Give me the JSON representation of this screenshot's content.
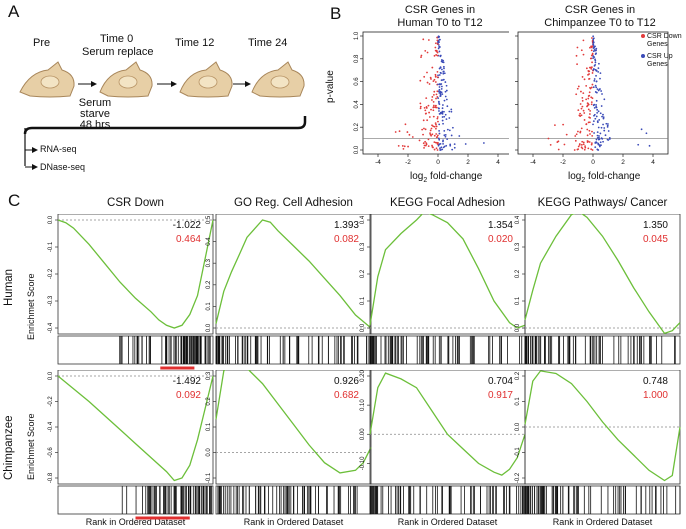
{
  "panel_a": {
    "letter": "A",
    "timepoints": [
      "Pre",
      "Time 0",
      "Time 12",
      "Time 24"
    ],
    "time0_sub": "Serum replace",
    "starve": [
      "Serum",
      "starve",
      "48 hrs"
    ],
    "assays": [
      "RNA-seq",
      "DNase-seq"
    ]
  },
  "panel_b": {
    "letter": "B",
    "plots": [
      {
        "title_line1": "CSR Genes in",
        "title_line2": "Human T0 to T12"
      },
      {
        "title_line1": "CSR Genes in",
        "title_line2": "Chimpanzee T0 to T12"
      }
    ],
    "ylabel": "p-value",
    "xlabel": "log",
    "xlabel_sub": "2",
    "xlabel_rest": " fold-change",
    "legend": [
      {
        "label_line1": "CSR Down",
        "label_line2": "Genes",
        "color": "#e23b3b"
      },
      {
        "label_line1": "CSR Up",
        "label_line2": "Genes",
        "color": "#3b4bb8"
      }
    ]
  },
  "panel_c": {
    "letter": "C",
    "row_labels": [
      "Human",
      "Chimpanzee"
    ],
    "ylabel": "Enrichmet Score",
    "xlabel": "Rank in Ordered Dataset",
    "columns": [
      {
        "title": "CSR Down"
      },
      {
        "title": "GO Reg. Cell Adhesion"
      },
      {
        "title": "KEGG Focal Adhesion"
      },
      {
        "title": "KEGG Pathways/ Cancer"
      }
    ],
    "stats": [
      [
        {
          "nes": "-1.022",
          "fdr": "0.464"
        },
        {
          "nes": "1.393",
          "fdr": "0.082"
        },
        {
          "nes": "1.354",
          "fdr": "0.020"
        },
        {
          "nes": "1.350",
          "fdr": "0.045"
        }
      ],
      [
        {
          "nes": "-1.492",
          "fdr": "0.092"
        },
        {
          "nes": "0.926",
          "fdr": "0.682"
        },
        {
          "nes": "0.704",
          "fdr": "0.917"
        },
        {
          "nes": "0.748",
          "fdr": "1.000"
        }
      ]
    ],
    "colors": {
      "curve": "#6cbf3a",
      "fdr": "#e03030",
      "bar": "#e03030"
    }
  },
  "chart_data": [
    {
      "type": "scatter",
      "title": "CSR Genes in Human T0 to T12",
      "xlabel": "log2 fold-change",
      "ylabel": "p-value",
      "xlim": [
        -5,
        5
      ],
      "ylim": [
        0,
        1
      ],
      "xticks": [
        "-4",
        "-2",
        "0",
        "2",
        "4"
      ],
      "yticks": [
        "0.0",
        "0.2",
        "0.4",
        "0.6",
        "0.8",
        "1.0"
      ],
      "hline": 0.1
    },
    {
      "type": "scatter",
      "title": "CSR Genes in Chimpanzee T0 to T12",
      "xlabel": "log2 fold-change",
      "ylabel": "p-value",
      "xlim": [
        -5,
        5
      ],
      "ylim": [
        0,
        1
      ],
      "xticks": [
        "-4",
        "-2",
        "0",
        "2",
        "4"
      ],
      "yticks": [
        "0.0",
        "0.2",
        "0.4",
        "0.6",
        "0.8",
        "1.0"
      ],
      "hline": 0.1
    },
    {
      "type": "line",
      "grid": [
        [
          {
            "ylim": [
              -0.4,
              0.0
            ],
            "yticks": [
              "0.0",
              "-0.1",
              "-0.2",
              "-0.3",
              "-0.4"
            ],
            "zero": 0,
            "curve": [
              [
                0,
                0.0
              ],
              [
                0.05,
                -0.01
              ],
              [
                0.1,
                -0.03
              ],
              [
                0.2,
                -0.09
              ],
              [
                0.3,
                -0.16
              ],
              [
                0.4,
                -0.23
              ],
              [
                0.5,
                -0.29
              ],
              [
                0.6,
                -0.34
              ],
              [
                0.65,
                -0.37
              ],
              [
                0.7,
                -0.39
              ],
              [
                0.75,
                -0.4
              ],
              [
                0.8,
                -0.39
              ],
              [
                0.85,
                -0.35
              ],
              [
                0.9,
                -0.28
              ],
              [
                0.95,
                -0.14
              ],
              [
                1.0,
                0.0
              ]
            ]
          },
          {
            "ylim": [
              0.0,
              0.5
            ],
            "yticks": [
              "0.0",
              "0.1",
              "0.2",
              "0.3",
              "0.4",
              "0.5"
            ],
            "zero": 0,
            "curve": [
              [
                0,
                0.02
              ],
              [
                0.05,
                0.17
              ],
              [
                0.1,
                0.26
              ],
              [
                0.15,
                0.34
              ],
              [
                0.2,
                0.42
              ],
              [
                0.25,
                0.46
              ],
              [
                0.3,
                0.5
              ],
              [
                0.35,
                0.49
              ],
              [
                0.4,
                0.45
              ],
              [
                0.5,
                0.38
              ],
              [
                0.6,
                0.31
              ],
              [
                0.7,
                0.23
              ],
              [
                0.8,
                0.15
              ],
              [
                0.9,
                0.06
              ],
              [
                1.0,
                0.0
              ]
            ]
          },
          {
            "ylim": [
              0.0,
              0.4
            ],
            "yticks": [
              "0.0",
              "0.1",
              "0.2",
              "0.3",
              "0.4"
            ],
            "zero": 0,
            "curve": [
              [
                0,
                0.01
              ],
              [
                0.05,
                0.19
              ],
              [
                0.1,
                0.29
              ],
              [
                0.2,
                0.35
              ],
              [
                0.3,
                0.4
              ],
              [
                0.35,
                0.43
              ],
              [
                0.4,
                0.42
              ],
              [
                0.5,
                0.39
              ],
              [
                0.6,
                0.33
              ],
              [
                0.7,
                0.22
              ],
              [
                0.8,
                0.1
              ],
              [
                0.9,
                0.02
              ],
              [
                0.95,
                0.0
              ],
              [
                1.0,
                0.01
              ]
            ]
          },
          {
            "ylim": [
              0.0,
              0.4
            ],
            "yticks": [
              "0.0",
              "0.1",
              "0.2",
              "0.3",
              "0.4"
            ],
            "zero": 0,
            "curve": [
              [
                0,
                0.03
              ],
              [
                0.05,
                0.14
              ],
              [
                0.1,
                0.24
              ],
              [
                0.2,
                0.34
              ],
              [
                0.3,
                0.42
              ],
              [
                0.35,
                0.43
              ],
              [
                0.4,
                0.41
              ],
              [
                0.5,
                0.34
              ],
              [
                0.6,
                0.25
              ],
              [
                0.7,
                0.15
              ],
              [
                0.8,
                0.06
              ],
              [
                0.9,
                -0.02
              ],
              [
                0.95,
                -0.01
              ],
              [
                1.0,
                0.02
              ]
            ]
          }
        ],
        [
          {
            "ylim": [
              -0.8,
              0.0
            ],
            "yticks": [
              "0.0",
              "-0.2",
              "-0.4",
              "-0.6",
              "-0.8"
            ],
            "zero": 0,
            "curve": [
              [
                0,
                0.0
              ],
              [
                0.1,
                -0.1
              ],
              [
                0.2,
                -0.2
              ],
              [
                0.3,
                -0.31
              ],
              [
                0.4,
                -0.42
              ],
              [
                0.5,
                -0.53
              ],
              [
                0.6,
                -0.64
              ],
              [
                0.7,
                -0.75
              ],
              [
                0.75,
                -0.82
              ],
              [
                0.8,
                -0.8
              ],
              [
                0.85,
                -0.7
              ],
              [
                0.9,
                -0.5
              ],
              [
                0.95,
                -0.25
              ],
              [
                1.0,
                0.0
              ]
            ]
          },
          {
            "ylim": [
              -0.1,
              0.3
            ],
            "yticks": [
              "0.3",
              "0.2",
              "0.1",
              "0.0",
              "-0.1"
            ],
            "zero": 0,
            "curve": [
              [
                0,
                0.13
              ],
              [
                0.05,
                0.32
              ],
              [
                0.1,
                0.35
              ],
              [
                0.2,
                0.33
              ],
              [
                0.3,
                0.27
              ],
              [
                0.4,
                0.19
              ],
              [
                0.5,
                0.11
              ],
              [
                0.6,
                0.03
              ],
              [
                0.7,
                -0.04
              ],
              [
                0.8,
                -0.08
              ],
              [
                0.9,
                -0.07
              ],
              [
                0.95,
                -0.04
              ],
              [
                1.0,
                0.02
              ]
            ]
          },
          {
            "ylim": [
              -0.15,
              0.2
            ],
            "yticks": [
              "0.20",
              "0.10",
              "0.00",
              "-0.10"
            ],
            "zero": 0,
            "curve": [
              [
                0,
                0.0
              ],
              [
                0.05,
                0.16
              ],
              [
                0.1,
                0.21
              ],
              [
                0.2,
                0.19
              ],
              [
                0.3,
                0.16
              ],
              [
                0.4,
                0.08
              ],
              [
                0.5,
                0.0
              ],
              [
                0.6,
                -0.05
              ],
              [
                0.7,
                -0.1
              ],
              [
                0.8,
                -0.13
              ],
              [
                0.85,
                -0.14
              ],
              [
                0.9,
                -0.12
              ],
              [
                0.95,
                -0.08
              ],
              [
                1.0,
                0.0
              ]
            ]
          },
          {
            "ylim": [
              -0.2,
              0.2
            ],
            "yticks": [
              "0.2",
              "0.1",
              "0.0",
              "-0.1",
              "-0.2"
            ],
            "zero": 0,
            "curve": [
              [
                0,
                0.01
              ],
              [
                0.05,
                0.18
              ],
              [
                0.1,
                0.22
              ],
              [
                0.2,
                0.21
              ],
              [
                0.3,
                0.17
              ],
              [
                0.4,
                0.1
              ],
              [
                0.5,
                0.02
              ],
              [
                0.6,
                -0.05
              ],
              [
                0.7,
                -0.11
              ],
              [
                0.8,
                -0.17
              ],
              [
                0.9,
                -0.21
              ],
              [
                0.95,
                -0.19
              ],
              [
                1.0,
                0.0
              ]
            ]
          }
        ]
      ]
    }
  ]
}
